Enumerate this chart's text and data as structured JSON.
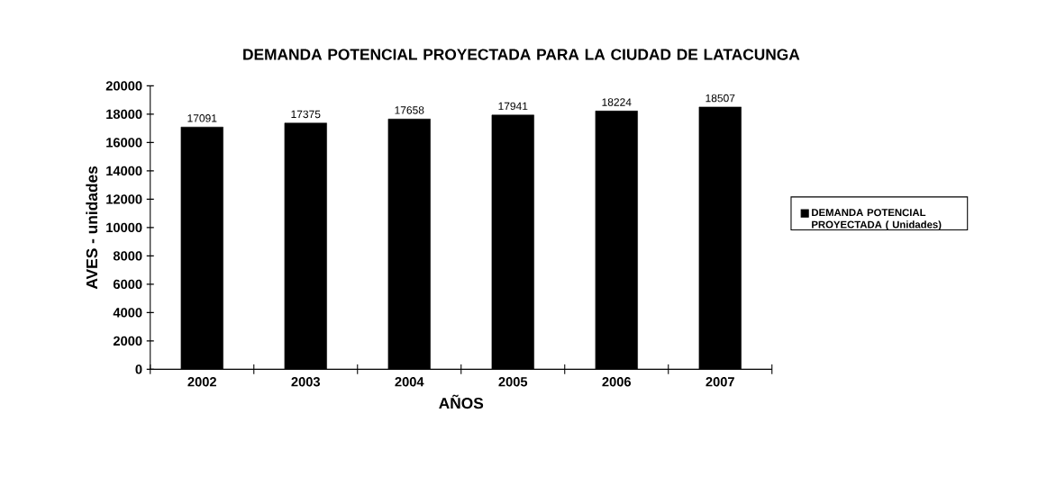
{
  "chart_data": {
    "type": "bar",
    "title": "DEMANDA POTENCIAL PROYECTADA PARA LA CIUDAD DE LATACUNGA",
    "xlabel": "AÑOS",
    "ylabel": "AVES - unidades",
    "categories": [
      "2002",
      "2003",
      "2004",
      "2005",
      "2006",
      "2007"
    ],
    "series": [
      {
        "name": "DEMANDA POTENCIAL PROYECTADA ( Unidades)",
        "color": "#000000",
        "values": [
          17091,
          17375,
          17658,
          17941,
          18224,
          18507
        ],
        "value_labels": [
          "17091",
          "17375",
          "17658",
          "17941",
          "18224",
          "18507"
        ]
      }
    ],
    "ylim": [
      0,
      20000
    ],
    "yticks": [
      0,
      2000,
      4000,
      6000,
      8000,
      10000,
      12000,
      14000,
      16000,
      18000,
      20000
    ],
    "grid": false,
    "legend": "right"
  }
}
